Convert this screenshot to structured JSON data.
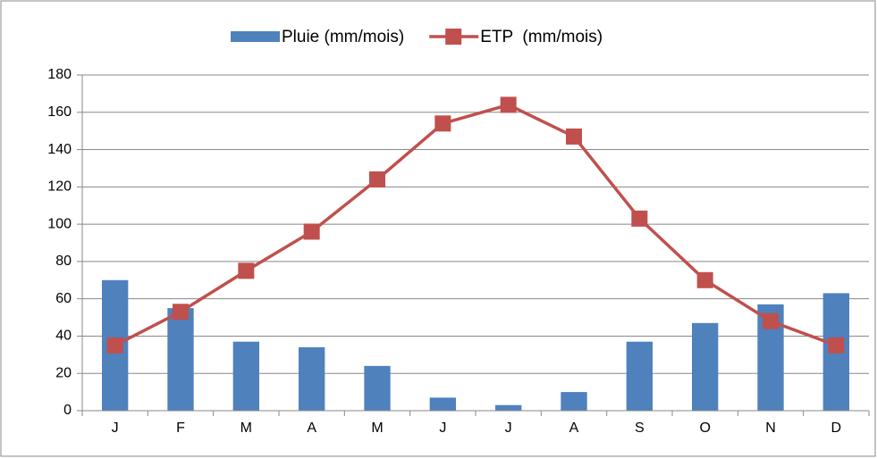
{
  "chart_data": {
    "type": "bar_line",
    "categories": [
      "J",
      "F",
      "M",
      "A",
      "M",
      "J",
      "J",
      "A",
      "S",
      "O",
      "N",
      "D"
    ],
    "series": [
      {
        "name": "Pluie (mm/mois)",
        "color": "#4f81bd",
        "type": "bar",
        "values": [
          70,
          55,
          37,
          34,
          24,
          7,
          3,
          10,
          37,
          47,
          57,
          63
        ]
      },
      {
        "name": "ETP  (mm/mois)",
        "color": "#c0504d",
        "type": "line",
        "values": [
          35,
          53,
          75,
          96,
          124,
          154,
          164,
          147,
          103,
          70,
          48,
          35
        ]
      }
    ],
    "ylim": [
      0,
      180
    ],
    "yticks": [
      0,
      20,
      40,
      60,
      80,
      100,
      120,
      140,
      160,
      180
    ],
    "grid": true,
    "legend": "top"
  }
}
